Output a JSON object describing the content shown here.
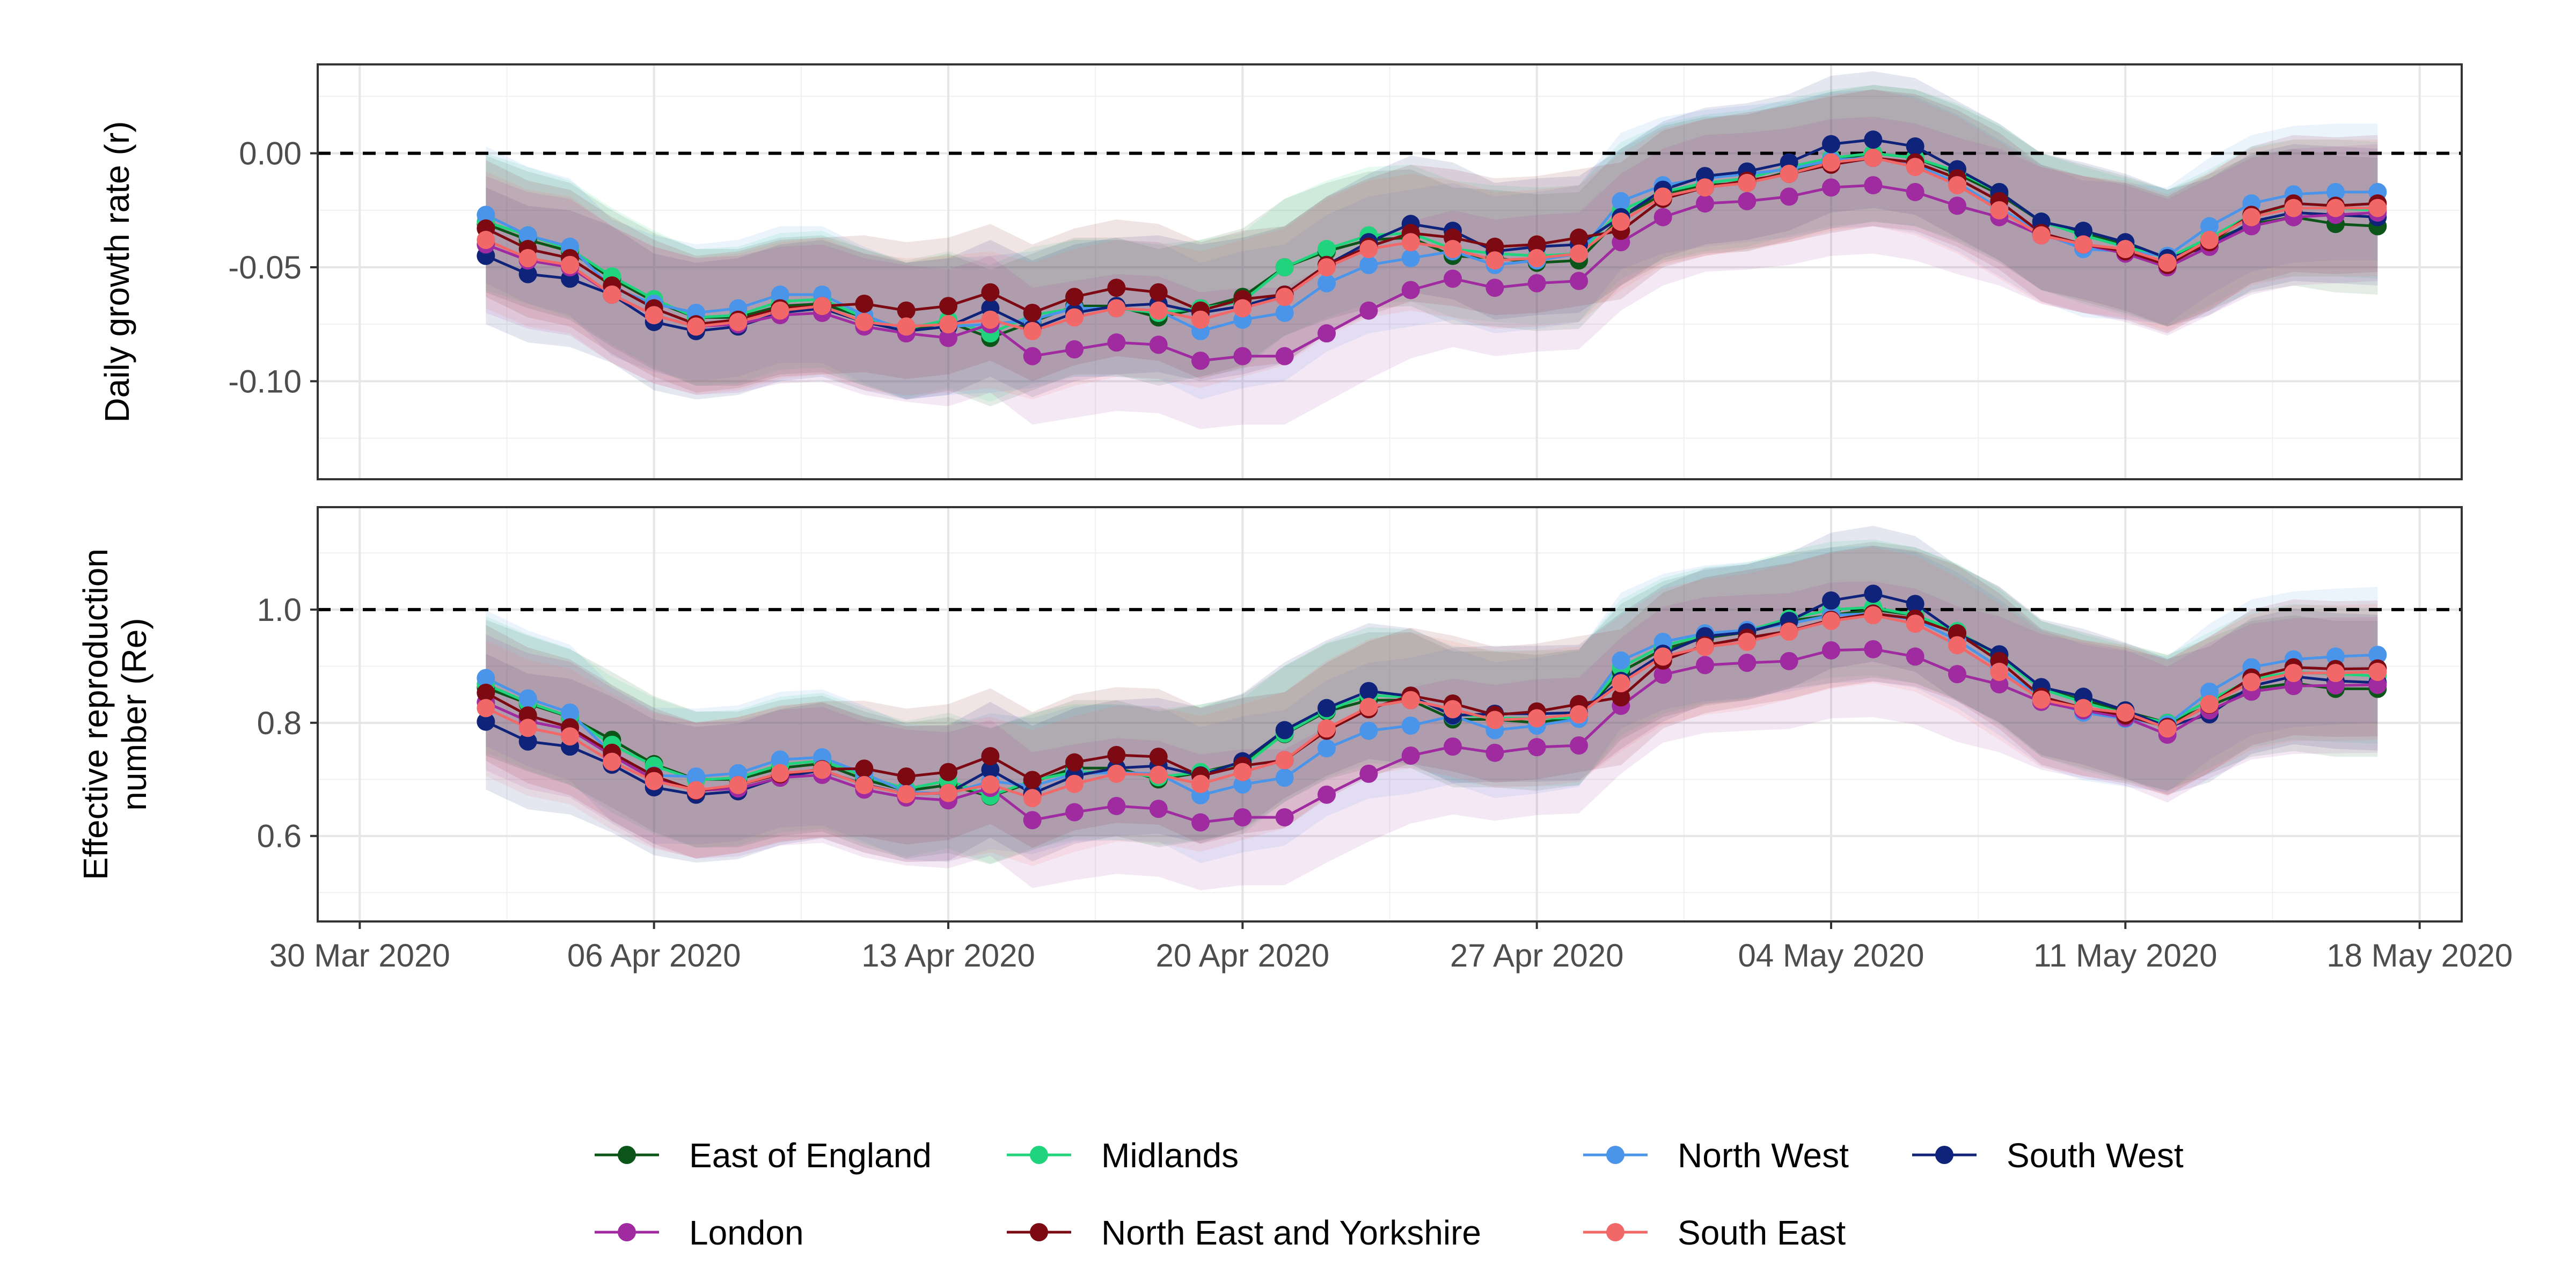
{
  "chart_data": {
    "type": "line",
    "x": [
      "2020-04-02",
      "2020-04-03",
      "2020-04-04",
      "2020-04-05",
      "2020-04-06",
      "2020-04-07",
      "2020-04-08",
      "2020-04-09",
      "2020-04-10",
      "2020-04-11",
      "2020-04-12",
      "2020-04-13",
      "2020-04-14",
      "2020-04-15",
      "2020-04-16",
      "2020-04-17",
      "2020-04-18",
      "2020-04-19",
      "2020-04-20",
      "2020-04-21",
      "2020-04-22",
      "2020-04-23",
      "2020-04-24",
      "2020-04-25",
      "2020-04-26",
      "2020-04-27",
      "2020-04-28",
      "2020-04-29",
      "2020-04-30",
      "2020-05-01",
      "2020-05-02",
      "2020-05-03",
      "2020-05-04",
      "2020-05-05",
      "2020-05-06",
      "2020-05-07",
      "2020-05-08",
      "2020-05-09",
      "2020-05-10",
      "2020-05-11",
      "2020-05-12",
      "2020-05-13",
      "2020-05-14",
      "2020-05-15",
      "2020-05-16",
      "2020-05-17"
    ],
    "x_tick_labels": [
      "30 Mar 2020",
      "06 Apr 2020",
      "13 Apr 2020",
      "20 Apr 2020",
      "27 Apr 2020",
      "04 May 2020",
      "11 May 2020",
      "18 May 2020"
    ],
    "x_tick_dates": [
      "2020-03-30",
      "2020-04-06",
      "2020-04-13",
      "2020-04-20",
      "2020-04-27",
      "2020-05-04",
      "2020-05-11",
      "2020-05-18"
    ],
    "xlim": [
      "2020-03-29",
      "2020-05-19"
    ],
    "legend_position": "bottom",
    "series_colors": {
      "East of England": "#0b5519",
      "Midlands": "#20d47e",
      "North West": "#4a95e9",
      "South West": "#0f237a",
      "London": "#a02aa0",
      "North East and Yorkshire": "#7d0a12",
      "South East": "#f26868"
    },
    "legend_order": [
      "East of England",
      "Midlands",
      "North West",
      "South West",
      "London",
      "North East and Yorkshire",
      "South East"
    ],
    "panels": [
      {
        "ylabel": "Daily growth rate (r)",
        "ylim": [
          -0.143,
          0.039
        ],
        "yticks": [
          0.0,
          -0.05,
          -0.1
        ],
        "ytick_labels": [
          "0.00",
          "-0.05",
          "-0.10"
        ],
        "reference_line": 0.0,
        "band_halfwidth": 0.03,
        "series": [
          {
            "name": "East of England",
            "values": [
              -0.031,
              -0.038,
              -0.043,
              -0.055,
              -0.065,
              -0.072,
              -0.072,
              -0.067,
              -0.066,
              -0.072,
              -0.078,
              -0.074,
              -0.081,
              -0.074,
              -0.067,
              -0.067,
              -0.072,
              -0.068,
              -0.063,
              -0.05,
              -0.043,
              -0.038,
              -0.037,
              -0.045,
              -0.046,
              -0.048,
              -0.047,
              -0.028,
              -0.018,
              -0.014,
              -0.013,
              -0.008,
              -0.003,
              0.0,
              -0.002,
              -0.009,
              -0.018,
              -0.03,
              -0.035,
              -0.04,
              -0.046,
              -0.039,
              -0.031,
              -0.028,
              -0.031,
              -0.032
            ]
          },
          {
            "name": "Midlands",
            "values": [
              -0.03,
              -0.036,
              -0.042,
              -0.054,
              -0.064,
              -0.072,
              -0.071,
              -0.065,
              -0.064,
              -0.072,
              -0.077,
              -0.073,
              -0.079,
              -0.071,
              -0.068,
              -0.068,
              -0.07,
              -0.068,
              -0.065,
              -0.05,
              -0.042,
              -0.036,
              -0.035,
              -0.042,
              -0.044,
              -0.045,
              -0.044,
              -0.025,
              -0.017,
              -0.013,
              -0.011,
              -0.006,
              -0.002,
              0.0,
              -0.002,
              -0.008,
              -0.017,
              -0.03,
              -0.036,
              -0.041,
              -0.046,
              -0.037,
              -0.027,
              -0.024,
              -0.024,
              -0.025
            ]
          },
          {
            "name": "North West",
            "values": [
              -0.027,
              -0.036,
              -0.041,
              -0.059,
              -0.066,
              -0.07,
              -0.068,
              -0.062,
              -0.062,
              -0.071,
              -0.078,
              -0.076,
              -0.075,
              -0.073,
              -0.068,
              -0.068,
              -0.069,
              -0.078,
              -0.073,
              -0.07,
              -0.057,
              -0.049,
              -0.046,
              -0.043,
              -0.049,
              -0.047,
              -0.044,
              -0.021,
              -0.014,
              -0.011,
              -0.009,
              -0.007,
              -0.003,
              -0.002,
              -0.005,
              -0.013,
              -0.024,
              -0.035,
              -0.042,
              -0.043,
              -0.045,
              -0.032,
              -0.022,
              -0.018,
              -0.017,
              -0.017
            ]
          },
          {
            "name": "South West",
            "values": [
              -0.045,
              -0.053,
              -0.055,
              -0.062,
              -0.074,
              -0.078,
              -0.076,
              -0.07,
              -0.068,
              -0.074,
              -0.078,
              -0.076,
              -0.068,
              -0.077,
              -0.07,
              -0.067,
              -0.066,
              -0.07,
              -0.067,
              -0.062,
              -0.049,
              -0.039,
              -0.031,
              -0.034,
              -0.043,
              -0.041,
              -0.04,
              -0.028,
              -0.016,
              -0.01,
              -0.008,
              -0.004,
              0.004,
              0.006,
              0.003,
              -0.007,
              -0.017,
              -0.03,
              -0.034,
              -0.039,
              -0.046,
              -0.041,
              -0.03,
              -0.026,
              -0.027,
              -0.028
            ]
          },
          {
            "name": "London",
            "values": [
              -0.04,
              -0.047,
              -0.05,
              -0.062,
              -0.071,
              -0.076,
              -0.075,
              -0.071,
              -0.07,
              -0.076,
              -0.079,
              -0.081,
              -0.075,
              -0.089,
              -0.086,
              -0.083,
              -0.084,
              -0.091,
              -0.089,
              -0.089,
              -0.079,
              -0.069,
              -0.06,
              -0.055,
              -0.059,
              -0.057,
              -0.056,
              -0.039,
              -0.028,
              -0.022,
              -0.021,
              -0.019,
              -0.015,
              -0.014,
              -0.017,
              -0.023,
              -0.028,
              -0.036,
              -0.04,
              -0.044,
              -0.05,
              -0.041,
              -0.032,
              -0.028,
              -0.027,
              -0.026
            ]
          },
          {
            "name": "North East and Yorkshire",
            "values": [
              -0.033,
              -0.042,
              -0.046,
              -0.058,
              -0.068,
              -0.075,
              -0.073,
              -0.068,
              -0.067,
              -0.066,
              -0.069,
              -0.067,
              -0.061,
              -0.07,
              -0.063,
              -0.059,
              -0.061,
              -0.069,
              -0.064,
              -0.062,
              -0.049,
              -0.041,
              -0.035,
              -0.037,
              -0.041,
              -0.04,
              -0.037,
              -0.034,
              -0.02,
              -0.015,
              -0.012,
              -0.009,
              -0.005,
              -0.002,
              -0.004,
              -0.011,
              -0.021,
              -0.035,
              -0.04,
              -0.043,
              -0.049,
              -0.039,
              -0.027,
              -0.022,
              -0.023,
              -0.022
            ]
          },
          {
            "name": "South East",
            "values": [
              -0.038,
              -0.046,
              -0.049,
              -0.062,
              -0.071,
              -0.076,
              -0.074,
              -0.069,
              -0.067,
              -0.074,
              -0.076,
              -0.075,
              -0.073,
              -0.078,
              -0.072,
              -0.068,
              -0.069,
              -0.073,
              -0.068,
              -0.063,
              -0.05,
              -0.042,
              -0.039,
              -0.042,
              -0.047,
              -0.046,
              -0.044,
              -0.03,
              -0.019,
              -0.015,
              -0.013,
              -0.009,
              -0.004,
              -0.002,
              -0.006,
              -0.014,
              -0.025,
              -0.036,
              -0.04,
              -0.042,
              -0.048,
              -0.038,
              -0.028,
              -0.024,
              -0.024,
              -0.024
            ]
          }
        ]
      },
      {
        "ylabel": "Effective reproduction number (Re)",
        "ylim": [
          0.449,
          1.181
        ],
        "yticks": [
          1.0,
          0.8,
          0.6
        ],
        "ytick_labels": [
          "1.0",
          "0.8",
          "0.6"
        ],
        "reference_line": 1.0,
        "band_halfwidth": 0.12,
        "series": [
          {
            "name": "East of England",
            "values": [
              0.862,
              0.834,
              0.81,
              0.77,
              0.727,
              0.7,
              0.7,
              0.72,
              0.728,
              0.7,
              0.68,
              0.69,
              0.67,
              0.695,
              0.72,
              0.72,
              0.7,
              0.712,
              0.73,
              0.78,
              0.82,
              0.84,
              0.84,
              0.806,
              0.806,
              0.8,
              0.81,
              0.89,
              0.93,
              0.95,
              0.96,
              0.98,
              0.99,
              1.0,
              0.99,
              0.96,
              0.92,
              0.86,
              0.84,
              0.82,
              0.8,
              0.83,
              0.86,
              0.87,
              0.86,
              0.86
            ]
          },
          {
            "name": "Midlands",
            "values": [
              0.868,
              0.836,
              0.811,
              0.761,
              0.724,
              0.699,
              0.703,
              0.726,
              0.733,
              0.706,
              0.683,
              0.698,
              0.671,
              0.698,
              0.713,
              0.713,
              0.704,
              0.713,
              0.723,
              0.781,
              0.822,
              0.849,
              0.845,
              0.816,
              0.808,
              0.808,
              0.809,
              0.898,
              0.936,
              0.955,
              0.963,
              0.984,
              1.0,
              1.004,
              0.99,
              0.962,
              0.916,
              0.86,
              0.836,
              0.816,
              0.8,
              0.84,
              0.877,
              0.89,
              0.886,
              0.883
            ]
          },
          {
            "name": "North West",
            "values": [
              0.879,
              0.843,
              0.818,
              0.745,
              0.707,
              0.705,
              0.711,
              0.735,
              0.739,
              0.71,
              0.678,
              0.674,
              0.697,
              0.688,
              0.71,
              0.712,
              0.71,
              0.672,
              0.691,
              0.703,
              0.755,
              0.786,
              0.795,
              0.812,
              0.787,
              0.795,
              0.807,
              0.91,
              0.943,
              0.958,
              0.964,
              0.975,
              0.99,
              0.993,
              0.982,
              0.946,
              0.898,
              0.844,
              0.818,
              0.807,
              0.797,
              0.855,
              0.898,
              0.912,
              0.917,
              0.92
            ]
          },
          {
            "name": "South West",
            "values": [
              0.802,
              0.767,
              0.758,
              0.726,
              0.686,
              0.673,
              0.679,
              0.704,
              0.716,
              0.691,
              0.674,
              0.676,
              0.717,
              0.675,
              0.706,
              0.72,
              0.724,
              0.707,
              0.732,
              0.787,
              0.826,
              0.856,
              0.847,
              0.813,
              0.816,
              0.816,
              0.818,
              0.874,
              0.922,
              0.953,
              0.96,
              0.98,
              1.016,
              1.028,
              1.01,
              0.958,
              0.921,
              0.863,
              0.846,
              0.822,
              0.793,
              0.815,
              0.865,
              0.882,
              0.874,
              0.871
            ]
          },
          {
            "name": "London",
            "values": [
              0.836,
              0.803,
              0.788,
              0.742,
              0.7,
              0.68,
              0.684,
              0.703,
              0.708,
              0.682,
              0.668,
              0.663,
              0.685,
              0.628,
              0.642,
              0.653,
              0.648,
              0.624,
              0.633,
              0.633,
              0.673,
              0.71,
              0.742,
              0.758,
              0.747,
              0.757,
              0.76,
              0.83,
              0.885,
              0.902,
              0.906,
              0.909,
              0.928,
              0.93,
              0.917,
              0.886,
              0.868,
              0.837,
              0.822,
              0.809,
              0.779,
              0.822,
              0.855,
              0.865,
              0.866,
              0.867
            ]
          },
          {
            "name": "North East and Yorkshire",
            "values": [
              0.853,
              0.813,
              0.792,
              0.747,
              0.706,
              0.68,
              0.69,
              0.709,
              0.718,
              0.719,
              0.705,
              0.713,
              0.741,
              0.699,
              0.73,
              0.743,
              0.74,
              0.706,
              0.724,
              0.734,
              0.786,
              0.824,
              0.848,
              0.834,
              0.814,
              0.82,
              0.833,
              0.845,
              0.91,
              0.937,
              0.95,
              0.962,
              0.982,
              0.993,
              0.984,
              0.958,
              0.909,
              0.846,
              0.826,
              0.813,
              0.792,
              0.832,
              0.88,
              0.898,
              0.895,
              0.896
            ]
          },
          {
            "name": "South East",
            "values": [
              0.826,
              0.791,
              0.776,
              0.731,
              0.697,
              0.681,
              0.69,
              0.711,
              0.717,
              0.69,
              0.674,
              0.676,
              0.691,
              0.667,
              0.692,
              0.71,
              0.708,
              0.692,
              0.713,
              0.734,
              0.79,
              0.828,
              0.84,
              0.824,
              0.805,
              0.808,
              0.815,
              0.87,
              0.917,
              0.934,
              0.943,
              0.961,
              0.98,
              0.99,
              0.975,
              0.937,
              0.89,
              0.841,
              0.826,
              0.818,
              0.79,
              0.833,
              0.872,
              0.888,
              0.888,
              0.89
            ]
          }
        ]
      }
    ]
  }
}
